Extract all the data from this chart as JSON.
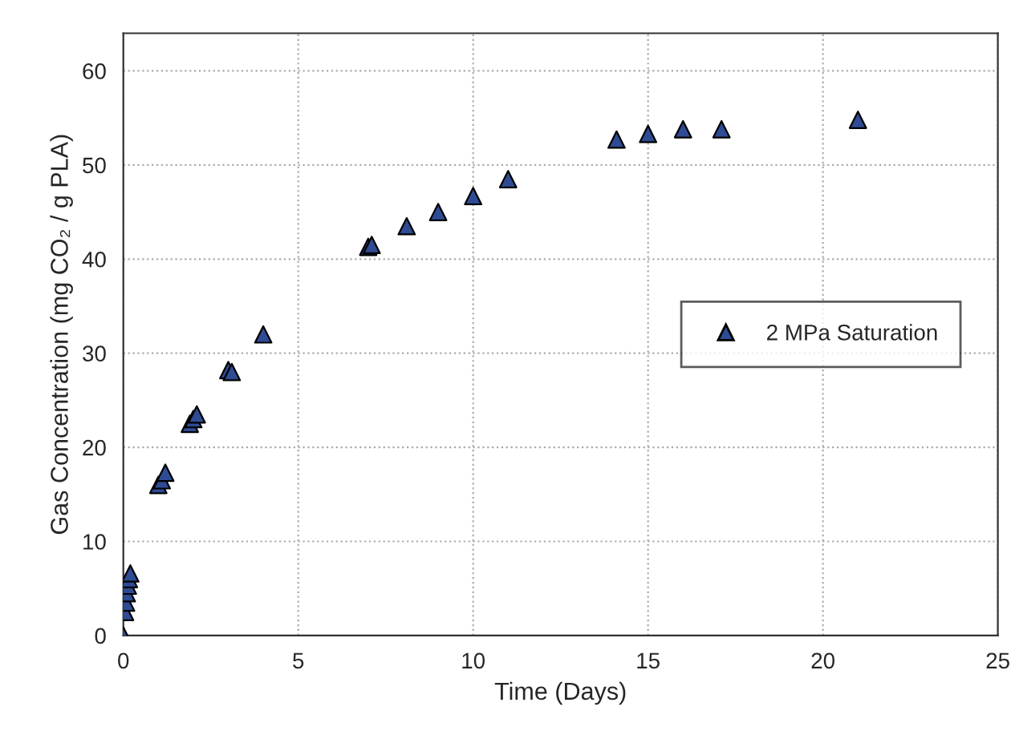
{
  "chart_data": {
    "type": "scatter",
    "xlabel": "Time (Days)",
    "ylabel": "Gas Concentration (mg CO₂ / g PLA)",
    "xlim": [
      0,
      25
    ],
    "xticks": [
      0,
      5,
      10,
      15,
      20,
      25
    ],
    "ylim": [
      0,
      64
    ],
    "yticks": [
      0,
      10,
      20,
      30,
      40,
      50,
      60
    ],
    "grid": true,
    "legend": "right",
    "marker": "triangle",
    "series": [
      {
        "name": "2 MPa Saturation",
        "color": "#2f4b94",
        "x": [
          0,
          0.05,
          0.08,
          0.1,
          0.13,
          0.16,
          0.2,
          1.0,
          1.1,
          1.2,
          1.9,
          2.0,
          2.1,
          3.0,
          3.1,
          4.0,
          7.0,
          7.1,
          8.1,
          9.0,
          10.0,
          11.0,
          14.1,
          15.0,
          16.0,
          17.1,
          21.0
        ],
        "values": [
          0,
          2.5,
          3.5,
          4.5,
          5.3,
          6.0,
          6.6,
          16.0,
          16.5,
          17.3,
          22.5,
          23.0,
          23.5,
          28.2,
          28.0,
          32.0,
          41.3,
          41.5,
          43.5,
          45.0,
          46.7,
          48.5,
          52.7,
          53.3,
          53.8,
          53.8,
          54.8
        ]
      }
    ]
  }
}
